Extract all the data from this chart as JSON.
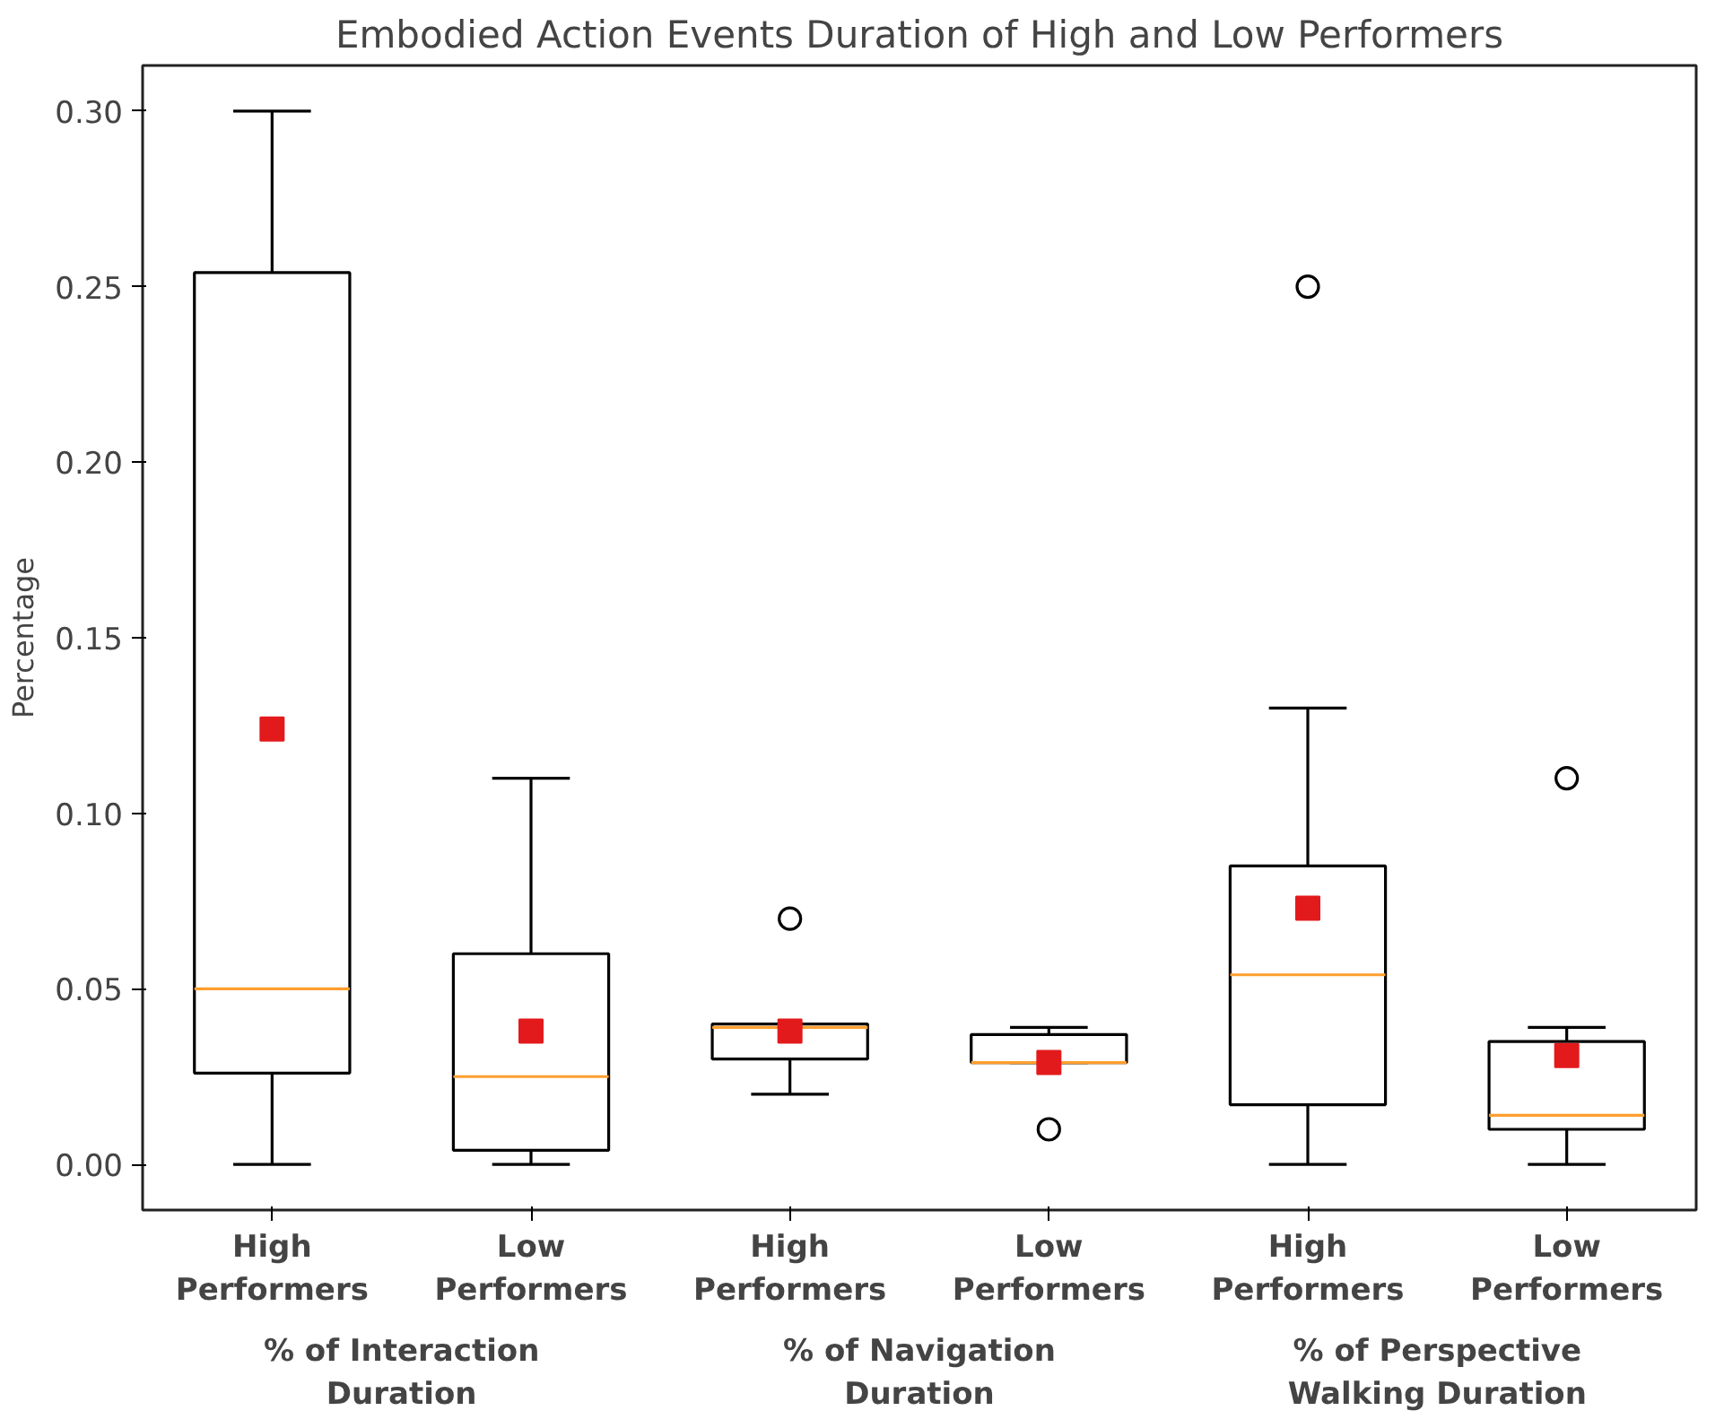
{
  "chart_data": {
    "type": "box",
    "title": "Embodied Action Events Duration of High and Low Performers",
    "ylabel": "Percentage",
    "categories": [
      "High\nPerformers",
      "Low\nPerformers",
      "High\nPerformers",
      "Low\nPerformers",
      "High\nPerformers",
      "Low\nPerformers"
    ],
    "boxes": [
      {
        "low": 0,
        "q1": 0.026,
        "median": 0.05,
        "q3": 0.254,
        "high": 0.3,
        "mean": 0.124
      },
      {
        "low": 0,
        "q1": 0.004,
        "median": 0.025,
        "q3": 0.06,
        "high": 0.11,
        "mean": 0.038
      },
      {
        "low": 0.02,
        "q1": 0.03,
        "median": 0.039,
        "q3": 0.04,
        "high": 0.04,
        "mean": 0.038,
        "outliers": [
          0.07
        ]
      },
      {
        "low": 0.029,
        "q1": 0.029,
        "median": 0.029,
        "q3": 0.037,
        "high": 0.039,
        "mean": 0.029,
        "outliers": [
          0.01
        ]
      },
      {
        "low": 0,
        "q1": 0.017,
        "median": 0.054,
        "q3": 0.085,
        "high": 0.13,
        "mean": 0.073,
        "outliers": [
          0.25
        ]
      },
      {
        "low": 0,
        "q1": 0.01,
        "median": 0.014,
        "q3": 0.035,
        "high": 0.039,
        "mean": 0.031,
        "outliers": [
          0.11
        ]
      }
    ],
    "annotations": [
      "% of Interaction\nDuration",
      "% of Navigation\nDuration",
      "% of Perspective\nWalking Duration"
    ],
    "ylim": [
      -0.013,
      0.313
    ],
    "yticks": [
      {
        "value": 0,
        "label": "0.00"
      },
      {
        "value": 0.05,
        "label": "0.05"
      },
      {
        "value": 0.1,
        "label": "0.10"
      },
      {
        "value": 0.15,
        "label": "0.15"
      },
      {
        "value": 0.2,
        "label": "0.20"
      },
      {
        "value": 0.25,
        "label": "0.25"
      },
      {
        "value": 0.3,
        "label": "0.30"
      }
    ],
    "grid": false
  }
}
